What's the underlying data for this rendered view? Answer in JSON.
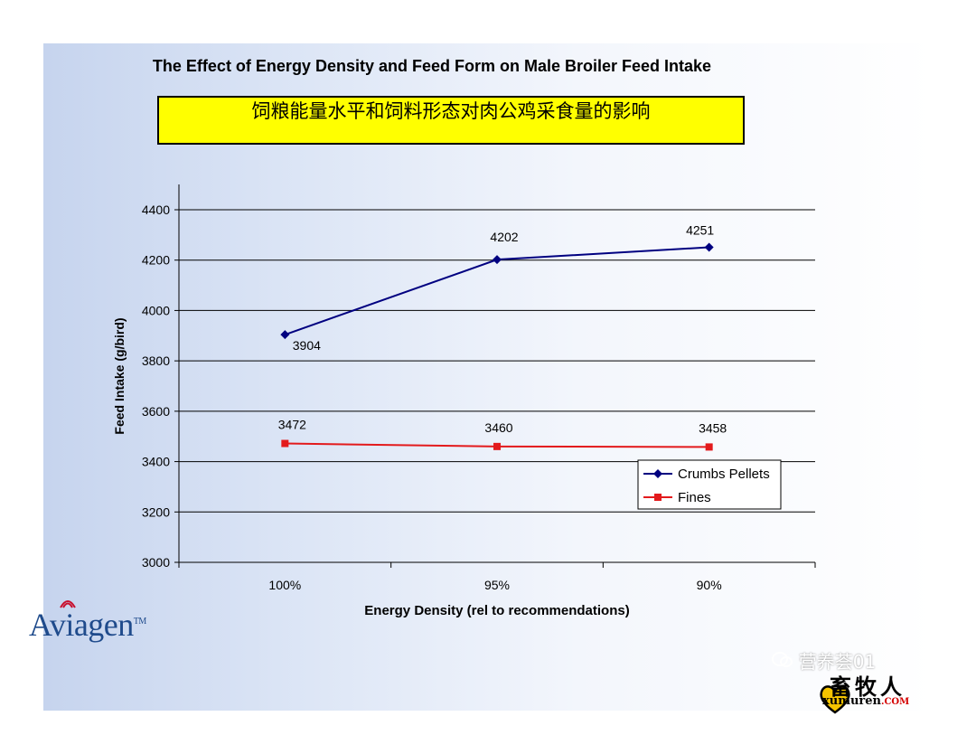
{
  "chart_data": {
    "type": "line",
    "title": "The Effect of Energy Density and Feed Form on Male Broiler Feed Intake",
    "subtitle_cn": "饲粮能量水平和饲料形态对肉公鸡采食量的影响",
    "xlabel": "Energy Density (rel to recommendations)",
    "ylabel": "Feed Intake (g/bird)",
    "categories": [
      "100%",
      "95%",
      "90%"
    ],
    "ylim": [
      3000,
      4400
    ],
    "yticks": [
      3000,
      3200,
      3400,
      3600,
      3800,
      4000,
      4200,
      4400
    ],
    "grid": true,
    "legend_position": "bottom-right",
    "series": [
      {
        "name": "Crumbs Pellets",
        "values": [
          3904,
          4202,
          4251
        ],
        "color": "#000080",
        "marker": "diamond",
        "labels": [
          "3904",
          "4202",
          "4251"
        ]
      },
      {
        "name": "Fines",
        "values": [
          3472,
          3460,
          3458
        ],
        "color": "#e31a1c",
        "marker": "square",
        "labels": [
          "3472",
          "3460",
          "3458"
        ]
      }
    ]
  },
  "branding": {
    "logo": "Aviagen",
    "logo_tm": "TM"
  },
  "watermark": {
    "account": "营养荟01",
    "site_name": "畜牧人",
    "site_url": "xumuren",
    "site_tld": ".COM"
  },
  "colors": {
    "brand": "#1f4b8c",
    "title_box": "#ffff00"
  }
}
